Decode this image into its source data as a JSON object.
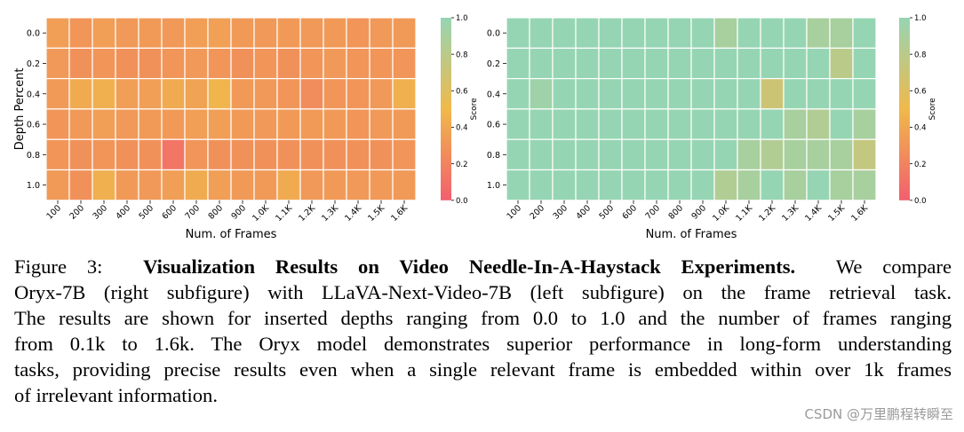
{
  "chart_data": [
    {
      "type": "heatmap",
      "title": "",
      "xlabel": "Num. of Frames",
      "ylabel": "Depth Percent",
      "x": [
        "100",
        "200",
        "300",
        "400",
        "500",
        "600",
        "700",
        "800",
        "900",
        "1.0K",
        "1.1K",
        "1.2K",
        "1.3K",
        "1.4K",
        "1.5K",
        "1.6K"
      ],
      "y": [
        "0.0",
        "0.2",
        "0.4",
        "0.6",
        "0.8",
        "1.0"
      ],
      "values": [
        [
          0.35,
          0.3,
          0.35,
          0.32,
          0.33,
          0.32,
          0.35,
          0.36,
          0.33,
          0.32,
          0.33,
          0.32,
          0.33,
          0.3,
          0.32,
          0.33
        ],
        [
          0.32,
          0.28,
          0.3,
          0.28,
          0.28,
          0.3,
          0.32,
          0.3,
          0.28,
          0.3,
          0.28,
          0.3,
          0.32,
          0.3,
          0.3,
          0.3
        ],
        [
          0.33,
          0.42,
          0.45,
          0.35,
          0.35,
          0.42,
          0.38,
          0.48,
          0.33,
          0.32,
          0.3,
          0.25,
          0.3,
          0.3,
          0.32,
          0.45
        ],
        [
          0.3,
          0.32,
          0.35,
          0.32,
          0.33,
          0.33,
          0.35,
          0.35,
          0.33,
          0.32,
          0.33,
          0.33,
          0.33,
          0.3,
          0.32,
          0.33
        ],
        [
          0.3,
          0.28,
          0.3,
          0.28,
          0.28,
          0.12,
          0.3,
          0.28,
          0.28,
          0.28,
          0.28,
          0.28,
          0.28,
          0.28,
          0.28,
          0.3
        ],
        [
          0.33,
          0.28,
          0.45,
          0.33,
          0.32,
          0.35,
          0.42,
          0.35,
          0.33,
          0.33,
          0.42,
          0.32,
          0.33,
          0.32,
          0.32,
          0.33
        ]
      ],
      "colorbar": {
        "label": "Score",
        "ticks": [
          "0.0",
          "0.2",
          "0.4",
          "0.6",
          "0.8",
          "1.0"
        ],
        "range": [
          0,
          1
        ]
      }
    },
    {
      "type": "heatmap",
      "title": "",
      "xlabel": "Num. of Frames",
      "ylabel": "",
      "x": [
        "100",
        "200",
        "300",
        "400",
        "500",
        "600",
        "700",
        "800",
        "900",
        "1.0K",
        "1.1K",
        "1.2K",
        "1.3K",
        "1.4K",
        "1.5K",
        "1.6K"
      ],
      "y": [
        "0.0",
        "0.2",
        "0.4",
        "0.6",
        "0.8",
        "1.0"
      ],
      "values": [
        [
          1.0,
          1.0,
          1.0,
          1.0,
          1.0,
          1.0,
          1.0,
          1.0,
          1.0,
          0.9,
          1.0,
          1.0,
          1.0,
          0.9,
          0.9,
          1.0
        ],
        [
          1.0,
          1.0,
          1.0,
          1.0,
          1.0,
          1.0,
          1.0,
          1.0,
          1.0,
          1.0,
          1.0,
          1.0,
          1.0,
          1.0,
          0.8,
          1.0
        ],
        [
          1.0,
          0.95,
          1.0,
          1.0,
          1.0,
          1.0,
          1.0,
          1.0,
          1.0,
          1.0,
          1.0,
          0.7,
          1.0,
          1.0,
          1.0,
          1.0
        ],
        [
          1.0,
          1.0,
          1.0,
          1.0,
          1.0,
          1.0,
          1.0,
          1.0,
          1.0,
          1.0,
          1.0,
          1.0,
          0.9,
          0.85,
          1.0,
          0.9
        ],
        [
          1.0,
          1.0,
          1.0,
          1.0,
          1.0,
          1.0,
          1.0,
          1.0,
          1.0,
          1.0,
          0.9,
          0.85,
          0.9,
          0.9,
          0.9,
          0.75
        ],
        [
          1.0,
          1.0,
          1.0,
          1.0,
          1.0,
          1.0,
          1.0,
          1.0,
          1.0,
          0.85,
          0.9,
          1.0,
          0.9,
          1.0,
          0.9,
          0.9
        ]
      ],
      "colorbar": {
        "label": "Score",
        "ticks": [
          "0.0",
          "0.2",
          "0.4",
          "0.6",
          "0.8",
          "1.0"
        ],
        "range": [
          0,
          1
        ]
      }
    }
  ],
  "colors": {
    "low": "#f25f6e",
    "mid": "#f0b94b",
    "high": "#96d5b3"
  },
  "caption": {
    "label": "Figure 3:",
    "bold_title": "Visualization Results on Video Needle-In-A-Haystack Experiments.",
    "first_tail": "We compare",
    "lines": [
      "Oryx-7B (right subfigure) with LLaVA-Next-Video-7B (left subfigure) on the frame retrieval task.",
      "The results are shown for inserted depths ranging from 0.0 to 1.0 and the number of frames ranging",
      "from 0.1k to 1.6k. The Oryx model demonstrates superior performance in long-form understanding",
      "tasks, providing precise results even when a single relevant frame is embedded within over 1k frames",
      "of irrelevant information."
    ]
  },
  "watermark": "CSDN @万里鹏程转瞬至"
}
